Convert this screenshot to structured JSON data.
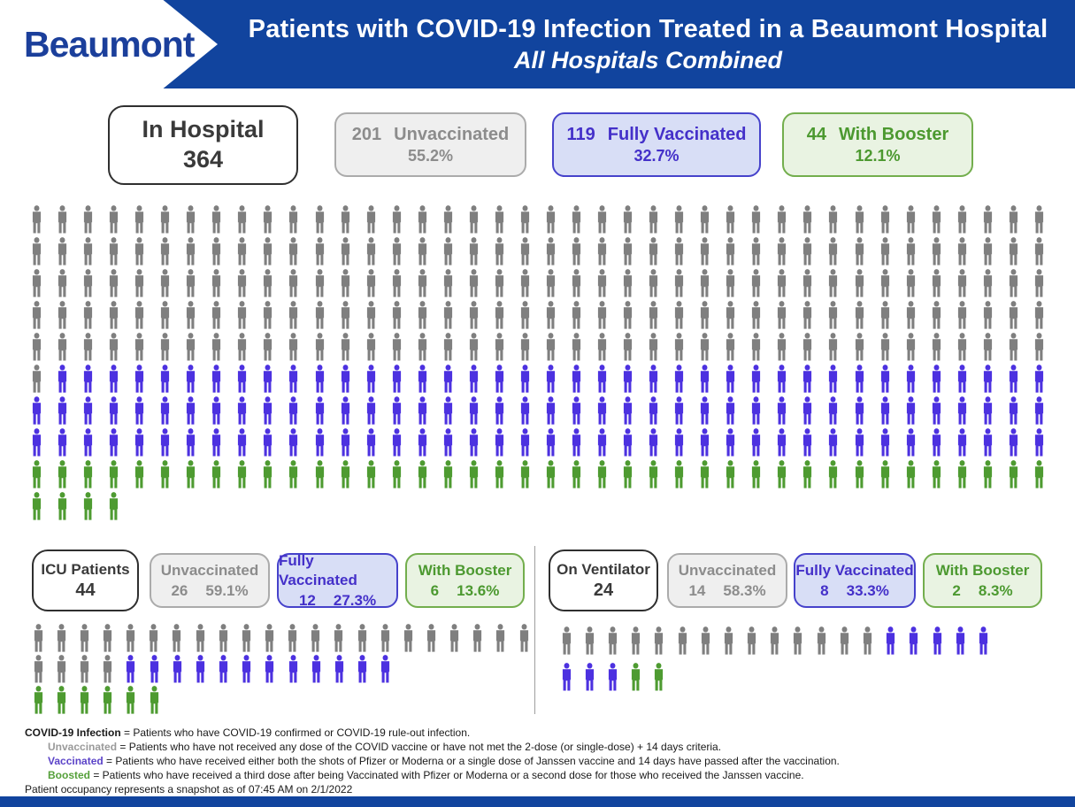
{
  "header": {
    "logo": "Beaumont",
    "title_line1": "Patients with COVID-19 Infection Treated in a Beaumont Hospital",
    "title_line2": "All Hospitals Combined"
  },
  "colors": {
    "banner_blue": "#11449E",
    "logo_blue": "#1B3F9B",
    "gray_bg": "#EFEFEF",
    "gray_border": "#ABABAB",
    "gray_text": "#8C8C8C",
    "blue_bg": "#D8DEF6",
    "blue_border": "#4642CB",
    "blue_text": "#4430C9",
    "green_bg": "#E9F3E2",
    "green_border": "#73AE4D",
    "green_text": "#4C9930"
  },
  "chart_data": [
    {
      "type": "pictograph",
      "title": "In Hospital",
      "total": 364,
      "unit": "1 icon = 1 patient",
      "icons_per_row": 40,
      "series": [
        {
          "name": "Unvaccinated",
          "value": 201,
          "pct": "55.2%",
          "color": "#7F7F7F"
        },
        {
          "name": "Fully Vaccinated",
          "value": 119,
          "pct": "32.7%",
          "color": "#4C31E0"
        },
        {
          "name": "With Booster",
          "value": 44,
          "pct": "12.1%",
          "color": "#4E9B31"
        }
      ]
    },
    {
      "type": "pictograph",
      "title": "ICU Patients",
      "total": 44,
      "unit": "1 icon = 1 patient",
      "icons_per_row": 22,
      "series": [
        {
          "name": "Unvaccinated",
          "value": 26,
          "pct": "59.1%",
          "color": "#7F7F7F"
        },
        {
          "name": "Fully Vaccinated",
          "value": 12,
          "pct": "27.3%",
          "color": "#4C31E0"
        },
        {
          "name": "With Booster",
          "value": 6,
          "pct": "13.6%",
          "color": "#4E9B31",
          "starts_new_row": true
        }
      ]
    },
    {
      "type": "pictograph",
      "title": "On Ventilator",
      "total": 24,
      "unit": "1 icon = 1 patient",
      "icons_per_row": 19,
      "series": [
        {
          "name": "Unvaccinated",
          "value": 14,
          "pct": "58.3%",
          "color": "#7F7F7F"
        },
        {
          "name": "Fully Vaccinated",
          "value": 8,
          "pct": "33.3%",
          "color": "#4C31E0"
        },
        {
          "name": "With Booster",
          "value": 2,
          "pct": "8.3%",
          "color": "#4E9B31"
        }
      ]
    }
  ],
  "footer": {
    "lines": [
      {
        "term": "COVID-19 Infection",
        "term_color": "#1a1a1a",
        "rest": " = Patients who have COVID-19 confirmed or COVID-19 rule-out infection.",
        "indent": false
      },
      {
        "term": "Unvaccinated",
        "term_color": "#9a9a9a",
        "rest": " = Patients who have not received any dose of the COVID vaccine or have not met the 2-dose (or single-dose) + 14 days criteria.",
        "indent": true
      },
      {
        "term": "Vaccinated",
        "term_color": "#5b43c8",
        "rest": " = Patients who have received either both the shots of Pfizer or Moderna or a single dose of Janssen vaccine and 14 days have passed after the vaccination.",
        "indent": true
      },
      {
        "term": "Boosted",
        "term_color": "#55a03a",
        "rest": " = Patients who have received a third dose after being Vaccinated with Pfizer or Moderna or a second dose for those who received the Janssen vaccine.",
        "indent": true
      },
      {
        "term": "",
        "term_color": "",
        "rest": "Patient occupancy represents a snapshot as of 07:45 AM on 2/1/2022",
        "indent": false
      }
    ]
  }
}
